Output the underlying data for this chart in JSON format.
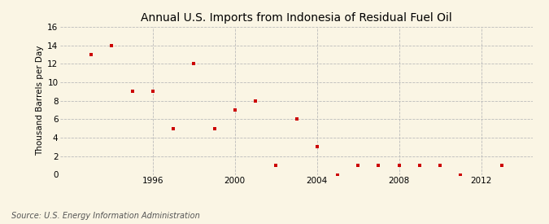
{
  "title": "Annual U.S. Imports from Indonesia of Residual Fuel Oil",
  "ylabel": "Thousand Barrels per Day",
  "source": "Source: U.S. Energy Information Administration",
  "years": [
    1993,
    1994,
    1995,
    1996,
    1997,
    1998,
    1999,
    2000,
    2001,
    2002,
    2003,
    2004,
    2005,
    2006,
    2007,
    2008,
    2009,
    2010,
    2011,
    2013
  ],
  "values": [
    13,
    14,
    9,
    9,
    5,
    12,
    5,
    7,
    8,
    1,
    6,
    3,
    0,
    1,
    1,
    1,
    1,
    1,
    0,
    1
  ],
  "marker_color": "#cc0000",
  "marker": "s",
  "marker_size": 3.5,
  "xlim": [
    1991.5,
    2014.5
  ],
  "ylim": [
    0,
    16
  ],
  "yticks": [
    0,
    2,
    4,
    6,
    8,
    10,
    12,
    14,
    16
  ],
  "xticks": [
    1996,
    2000,
    2004,
    2008,
    2012
  ],
  "grid_color": "#bbbbbb",
  "grid_style": "--",
  "background_color": "#faf5e4",
  "title_fontsize": 10,
  "ylabel_fontsize": 7.5,
  "tick_fontsize": 7.5,
  "source_fontsize": 7
}
